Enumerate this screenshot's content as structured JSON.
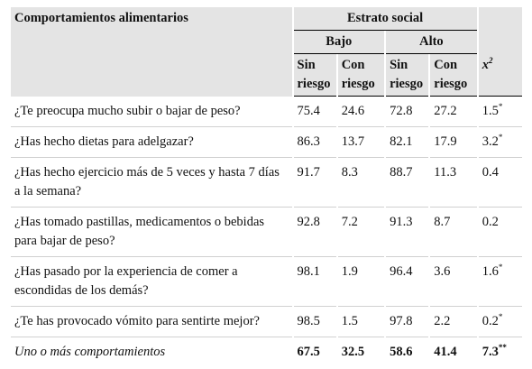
{
  "table": {
    "header": {
      "title": "Comportamientos alimentarios",
      "group": "Estrato social",
      "subgroups": [
        "Bajo",
        "Alto"
      ],
      "columns": [
        "Sin riesgo",
        "Con riesgo",
        "Sin riesgo",
        "Con riesgo"
      ],
      "chi": "x",
      "chi_sup": "2"
    },
    "rows": [
      {
        "label": "¿Te preocupa mucho subir o bajar de peso?",
        "values": [
          75.4,
          24.6,
          72.8,
          27.2
        ],
        "chi": 1.5,
        "sup": "*"
      },
      {
        "label": "¿Has hecho dietas para adelgazar?",
        "values": [
          86.3,
          13.7,
          82.1,
          17.9
        ],
        "chi": 3.2,
        "sup": "*"
      },
      {
        "label": "¿Has hecho ejercicio más de 5 veces y hasta 7 días a la semana?",
        "values": [
          91.7,
          8.3,
          88.7,
          11.3
        ],
        "chi": 0.4
      },
      {
        "label": "¿Has tomado pastillas, medicamentos o bebidas para bajar de peso?",
        "values": [
          92.8,
          7.2,
          91.3,
          8.7
        ],
        "chi": 0.2
      },
      {
        "label": "¿Has pasado por la experiencia de comer a escondidas de los demás?",
        "values": [
          98.1,
          1.9,
          96.4,
          3.6
        ],
        "chi": 1.6,
        "sup": "*"
      },
      {
        "label": "¿Te has provocado vómito para sentirte mejor?",
        "values": [
          98.5,
          1.5,
          97.8,
          2.2
        ],
        "chi": 0.2,
        "sup": "*"
      },
      {
        "label": "Uno o más comportamientos",
        "values": [
          67.5,
          32.5,
          58.6,
          41.4
        ],
        "chi": 7.3,
        "sup": "**",
        "total": true
      }
    ]
  }
}
